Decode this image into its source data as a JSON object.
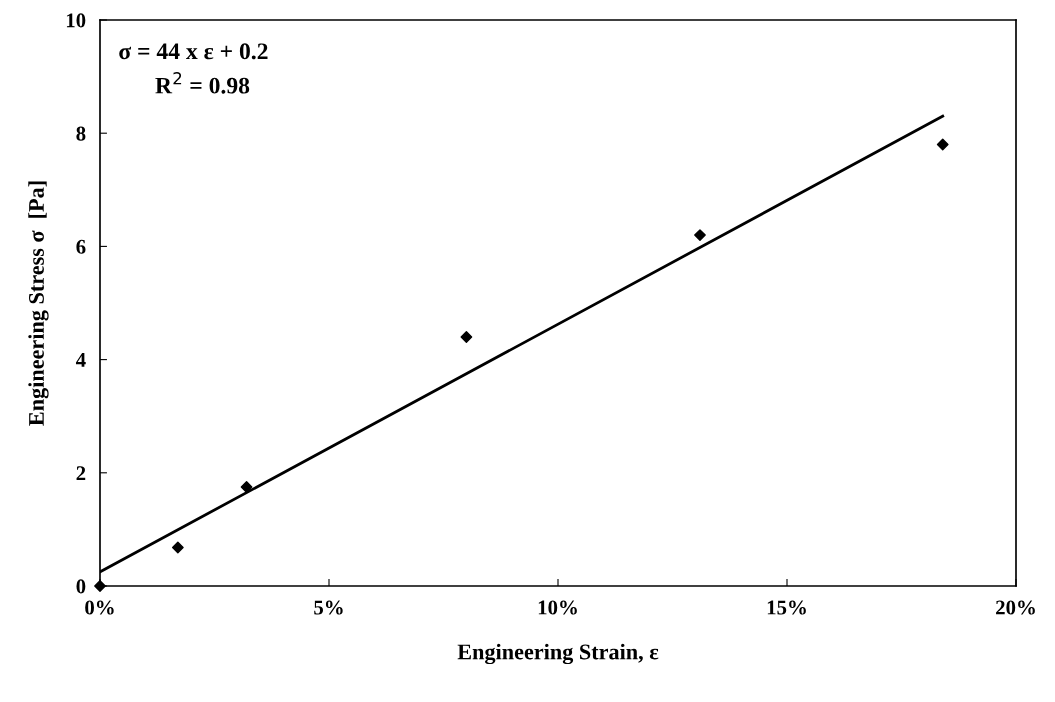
{
  "chart_data": {
    "type": "scatter",
    "xlabel": "Engineering Strain, ε",
    "ylabel": "Engineering Stress σ  [Pa]",
    "annotations": [
      "σ = 44 x ε + 0.2",
      "R$^{2}$ = 0.98"
    ],
    "marker": "diamond",
    "grid": false,
    "legend": false,
    "xlim": [
      0,
      0.2
    ],
    "xticks": [
      {
        "value": 0,
        "label": "0%"
      },
      {
        "value": 0.05,
        "label": "5%"
      },
      {
        "value": 0.1,
        "label": "10%"
      },
      {
        "value": 0.15,
        "label": "15%"
      },
      {
        "value": 0.2,
        "label": "20%"
      }
    ],
    "ylim": [
      0,
      10
    ],
    "yticks": [
      0,
      2,
      4,
      6,
      8,
      10
    ],
    "series": [
      {
        "type": "scatter",
        "color": "#000000",
        "x": [
          0,
          0.017,
          0.032,
          0.08,
          0.131,
          0.184
        ],
        "values": [
          0,
          0.68,
          1.75,
          4.4,
          6.2,
          7.8
        ]
      },
      {
        "type": "line",
        "color": "#000000",
        "line_style": "solid",
        "marker": "none",
        "x": [
          0,
          0.184
        ],
        "values": [
          0.25,
          8.3
        ]
      }
    ]
  }
}
